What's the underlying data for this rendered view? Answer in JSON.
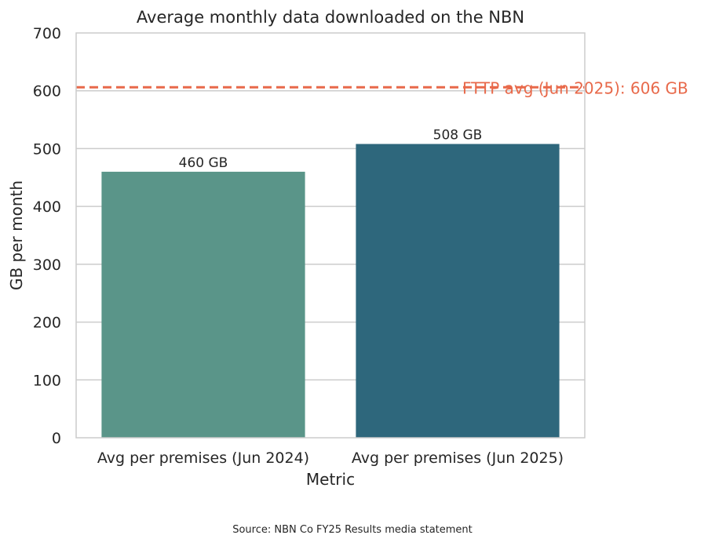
{
  "chart_data": {
    "type": "bar",
    "title": "Average monthly data downloaded on the NBN",
    "xlabel": "Metric",
    "ylabel": "GB per month",
    "categories": [
      "Avg per premises (Jun 2024)",
      "Avg per premises (Jun 2025)"
    ],
    "values": [
      460,
      508
    ],
    "data_labels": [
      "460 GB",
      "508 GB"
    ],
    "bar_colors": [
      "#5a9589",
      "#2e677c"
    ],
    "ylim": [
      0,
      700
    ],
    "yticks": [
      0,
      100,
      200,
      300,
      400,
      500,
      600,
      700
    ],
    "grid": true,
    "reference_line": {
      "value": 606,
      "label": "FTTP avg (Jun 2025): 606 GB",
      "color": "#e8694a",
      "style": "dashed"
    }
  },
  "source": "Source: NBN Co FY25 Results media statement"
}
